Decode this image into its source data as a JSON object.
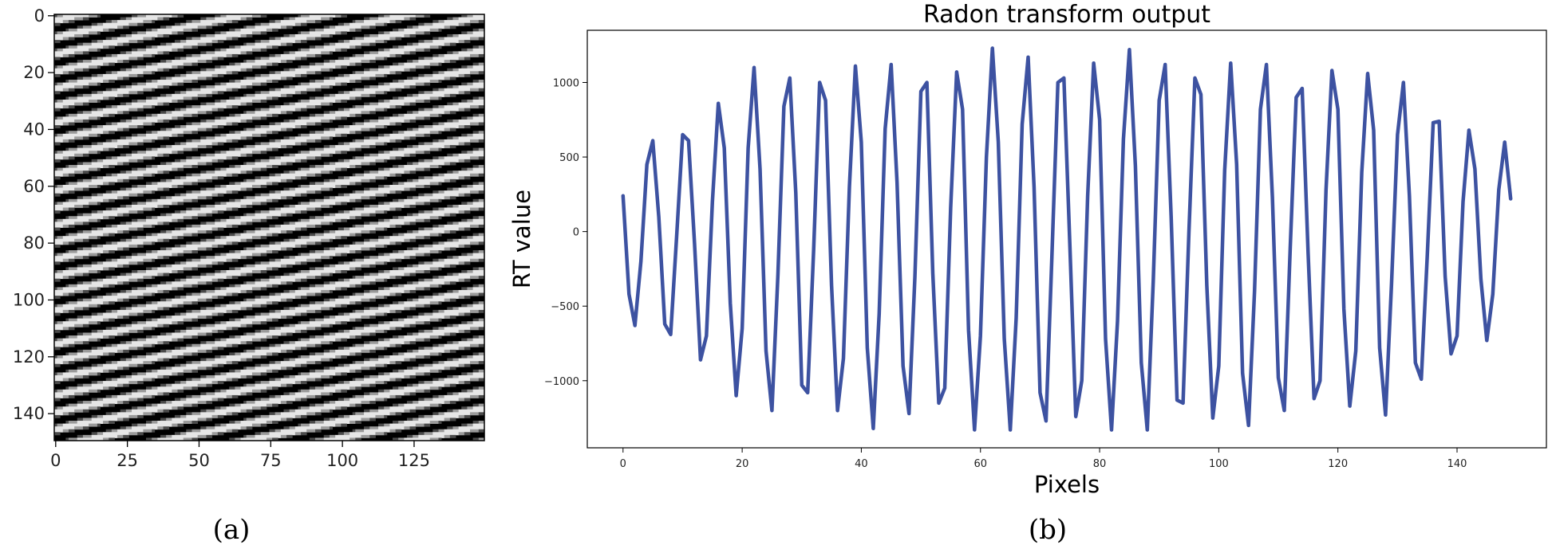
{
  "panel_a": {
    "caption": "(a)",
    "x_ticks": [
      "0",
      "25",
      "50",
      "75",
      "100",
      "125"
    ],
    "y_ticks": [
      "0",
      "20",
      "40",
      "60",
      "80",
      "100",
      "120",
      "140"
    ]
  },
  "panel_b": {
    "caption": "(b)"
  },
  "chart_data": [
    {
      "type": "heatmap",
      "description_pattern": "diagonal sinusoidal stripes, grayscale",
      "size": [
        150,
        150
      ],
      "xlim": [
        0,
        149
      ],
      "ylim": [
        149,
        0
      ],
      "x_tick_values": [
        0,
        25,
        50,
        75,
        100,
        125
      ],
      "y_tick_values": [
        0,
        20,
        40,
        60,
        80,
        100,
        120,
        140
      ],
      "colormap": "gray",
      "stripe_period_rows": 6,
      "stripe_row_shift_per_column": 0.21
    },
    {
      "type": "line",
      "title": "Radon transform output",
      "xlabel": "Pixels",
      "ylabel": "RT value",
      "xlim": [
        -6,
        155
      ],
      "ylim": [
        -1450,
        1350
      ],
      "x_ticks": [
        0,
        20,
        40,
        60,
        80,
        100,
        120,
        140
      ],
      "y_ticks": [
        -1000,
        -500,
        0,
        500,
        1000
      ],
      "color": "#3d52a1",
      "x": [
        0,
        1,
        2,
        3,
        4,
        5,
        6,
        7,
        8,
        9,
        10,
        11,
        12,
        13,
        14,
        15,
        16,
        17,
        18,
        19,
        20,
        21,
        22,
        23,
        24,
        25,
        26,
        27,
        28,
        29,
        30,
        31,
        32,
        33,
        34,
        35,
        36,
        37,
        38,
        39,
        40,
        41,
        42,
        43,
        44,
        45,
        46,
        47,
        48,
        49,
        50,
        51,
        52,
        53,
        54,
        55,
        56,
        57,
        58,
        59,
        60,
        61,
        62,
        63,
        64,
        65,
        66,
        67,
        68,
        69,
        70,
        71,
        72,
        73,
        74,
        75,
        76,
        77,
        78,
        79,
        80,
        81,
        82,
        83,
        84,
        85,
        86,
        87,
        88,
        89,
        90,
        91,
        92,
        93,
        94,
        95,
        96,
        97,
        98,
        99,
        100,
        101,
        102,
        103,
        104,
        105,
        106,
        107,
        108,
        109,
        110,
        111,
        112,
        113,
        114,
        115,
        116,
        117,
        118,
        119,
        120,
        121,
        122,
        123,
        124,
        125,
        126,
        127,
        128,
        129,
        130,
        131,
        132,
        133,
        134,
        135,
        136,
        137,
        138,
        139,
        140,
        141,
        142,
        143,
        144,
        145,
        146,
        147,
        148,
        149
      ],
      "y": [
        240,
        -420,
        -630,
        -200,
        450,
        610,
        100,
        -620,
        -690,
        -30,
        650,
        610,
        -80,
        -860,
        -700,
        200,
        860,
        560,
        -480,
        -1100,
        -650,
        560,
        1100,
        420,
        -800,
        -1200,
        -290,
        840,
        1030,
        260,
        -1030,
        -1080,
        -120,
        1000,
        880,
        -360,
        -1200,
        -850,
        300,
        1110,
        600,
        -780,
        -1320,
        -550,
        690,
        1120,
        330,
        -900,
        -1220,
        -300,
        940,
        1000,
        -280,
        -1150,
        -1050,
        160,
        1070,
        820,
        -660,
        -1330,
        -700,
        500,
        1230,
        600,
        -720,
        -1330,
        -580,
        720,
        1170,
        300,
        -1080,
        -1270,
        -160,
        1000,
        1030,
        -80,
        -1240,
        -1000,
        240,
        1130,
        750,
        -720,
        -1330,
        -600,
        620,
        1220,
        440,
        -880,
        -1330,
        -330,
        880,
        1120,
        100,
        -1130,
        -1150,
        0,
        1030,
        920,
        -360,
        -1250,
        -900,
        410,
        1130,
        450,
        -950,
        -1300,
        -400,
        820,
        1120,
        230,
        -980,
        -1200,
        -100,
        900,
        960,
        -150,
        -1120,
        -1000,
        280,
        1080,
        820,
        -520,
        -1170,
        -800,
        400,
        1060,
        680,
        -780,
        -1230,
        -350,
        650,
        1000,
        240,
        -880,
        -990,
        -160,
        730,
        740,
        -300,
        -820,
        -700,
        200,
        680,
        420,
        -320,
        -730,
        -420,
        280,
        600,
        220
      ]
    }
  ]
}
